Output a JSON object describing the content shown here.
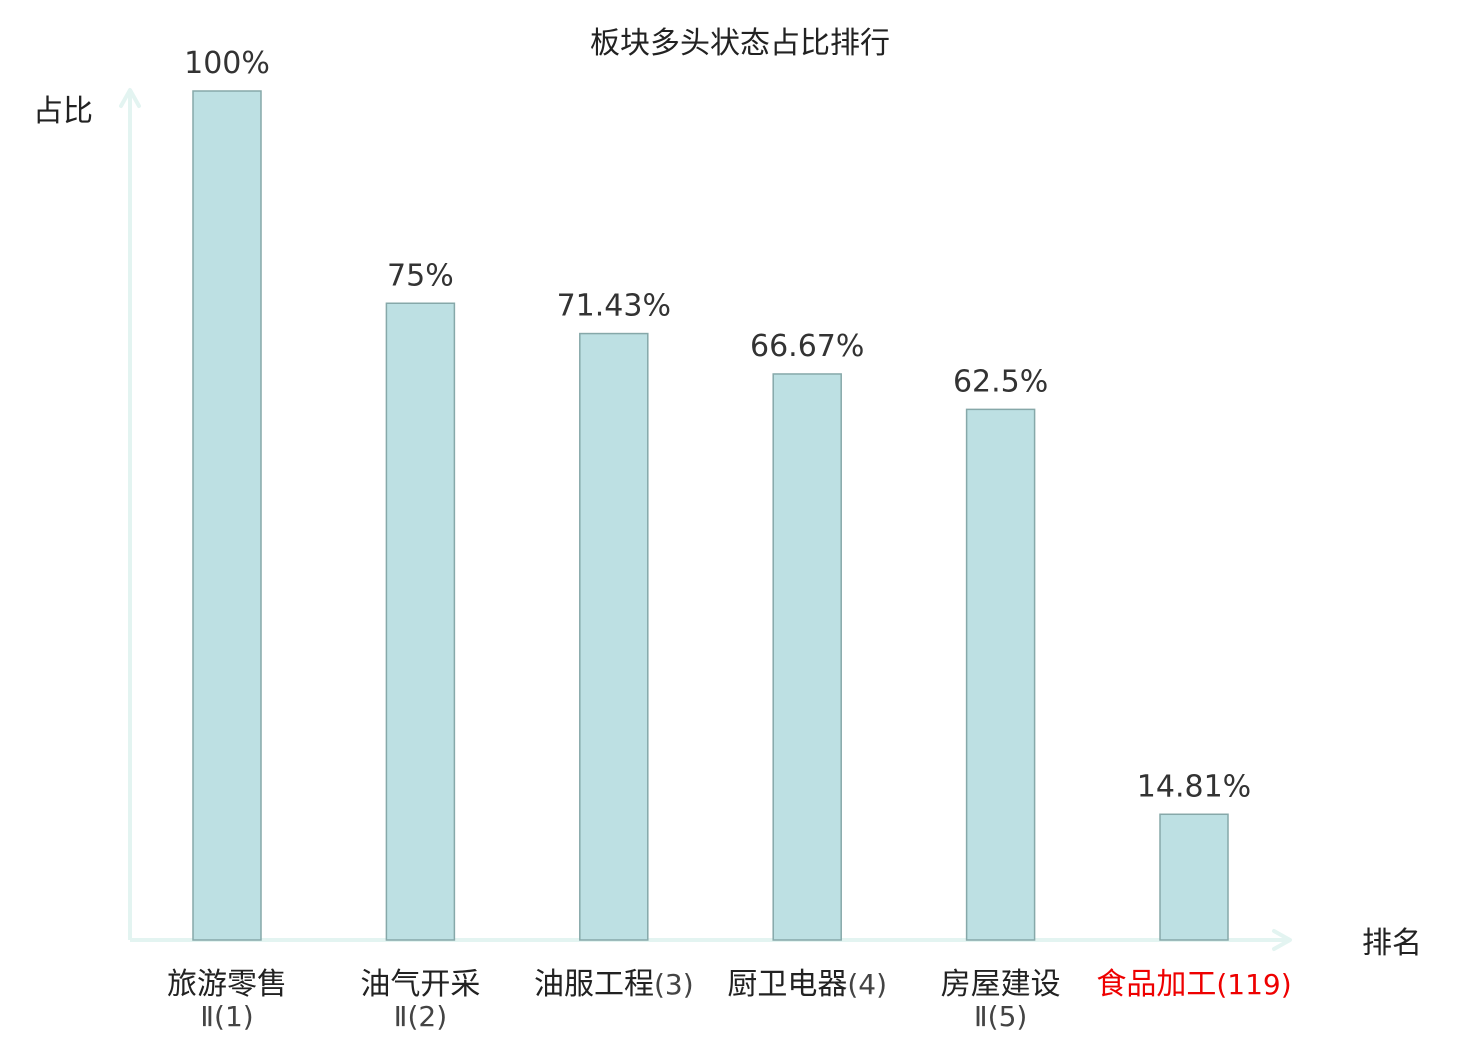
{
  "chart_data": {
    "type": "bar",
    "title": "板块多头状态占比排行",
    "ylabel": "占比",
    "xlabel": "排名",
    "ylim": [
      0,
      100
    ],
    "grid": false,
    "legend": "none",
    "colors": {
      "bar_fill": "#bde0e3",
      "bar_stroke": "#86a8a9",
      "axis": "#e3f4f1",
      "text": "#222222",
      "value_text": "#333333",
      "rank_text": "#444444",
      "highlight": "#ee0000"
    },
    "categories": [
      {
        "name": "旅游零售",
        "rank": "Ⅱ(1)",
        "highlight": false
      },
      {
        "name": "油气开采",
        "rank": "Ⅱ(2)",
        "highlight": false
      },
      {
        "name": "油服工程",
        "rank": "(3)",
        "highlight": false
      },
      {
        "name": "厨卫电器",
        "rank": "(4)",
        "highlight": false
      },
      {
        "name": "房屋建设",
        "rank": "Ⅱ(5)",
        "highlight": false
      },
      {
        "name": "食品加工",
        "rank": "(119)",
        "highlight": true
      }
    ],
    "values": [
      100,
      75,
      71.43,
      66.67,
      62.5,
      14.81
    ],
    "value_labels": [
      "100%",
      "75%",
      "71.43%",
      "66.67%",
      "62.5%",
      "14.81%"
    ]
  }
}
